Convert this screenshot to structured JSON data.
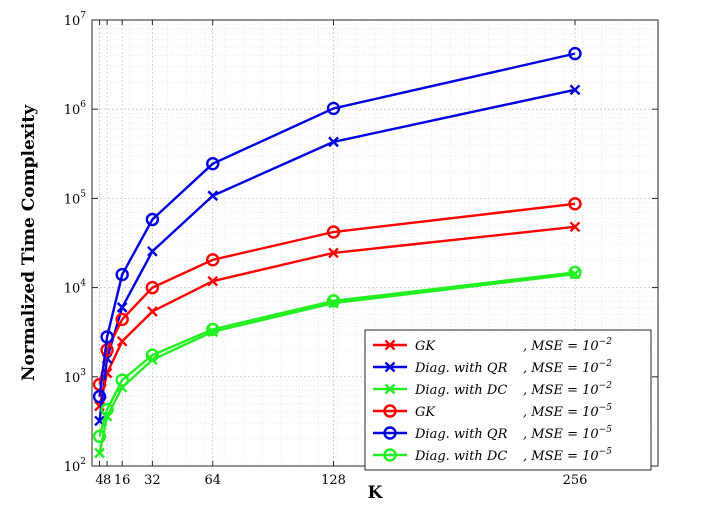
{
  "chart_data": {
    "type": "line",
    "title": "",
    "xlabel": "K",
    "ylabel": "Normalized Time Complexity",
    "x": [
      4,
      8,
      16,
      32,
      64,
      128,
      256
    ],
    "xticks": [
      4,
      8,
      16,
      32,
      64,
      128,
      256
    ],
    "xtick_labels": [
      "4",
      "8",
      "16",
      "32",
      "64",
      "128",
      "256"
    ],
    "xlim": [
      0,
      300
    ],
    "yscale": "log",
    "ylim": [
      100,
      10000000
    ],
    "ytick_labels": [
      {
        "base": "10",
        "exp": "2"
      },
      {
        "base": "10",
        "exp": "3"
      },
      {
        "base": "10",
        "exp": "4"
      },
      {
        "base": "10",
        "exp": "5"
      },
      {
        "base": "10",
        "exp": "6"
      },
      {
        "base": "10",
        "exp": "7"
      }
    ],
    "grid": true,
    "legend_position": "bottom-right",
    "series": [
      {
        "label_main": "GK",
        "label_suffix": ", MSE = 10",
        "label_exp": "−2",
        "color": "#ff0000",
        "marker": "x",
        "values": [
          470,
          1100,
          2500,
          5400,
          11800,
          24500,
          48000
        ]
      },
      {
        "label_main": "Diag. with QR",
        "label_suffix": ", MSE = 10",
        "label_exp": "−2",
        "color": "#0000e0",
        "marker": "x",
        "values": [
          320,
          1600,
          6000,
          25500,
          107000,
          430000,
          1650000
        ]
      },
      {
        "label_main": "Diag. with DC",
        "label_suffix": ", MSE = 10",
        "label_exp": "−2",
        "color": "#22ee22",
        "marker": "x",
        "values": [
          140,
          360,
          760,
          1550,
          3200,
          6700,
          14200
        ]
      },
      {
        "label_main": "GK",
        "label_suffix": ", MSE = 10",
        "label_exp": "−5",
        "color": "#ff0000",
        "marker": "o",
        "values": [
          820,
          2000,
          4400,
          10000,
          20500,
          42000,
          87000
        ]
      },
      {
        "label_main": "Diag. with QR",
        "label_suffix": ", MSE = 10",
        "label_exp": "−5",
        "color": "#0000e0",
        "marker": "o",
        "values": [
          600,
          2800,
          14000,
          58000,
          245000,
          1020000,
          4200000
        ]
      },
      {
        "label_main": "Diag. with DC",
        "label_suffix": ", MSE = 10",
        "label_exp": "−5",
        "color": "#22ee22",
        "marker": "o",
        "values": [
          215,
          430,
          920,
          1750,
          3400,
          7100,
          14800
        ]
      }
    ]
  }
}
